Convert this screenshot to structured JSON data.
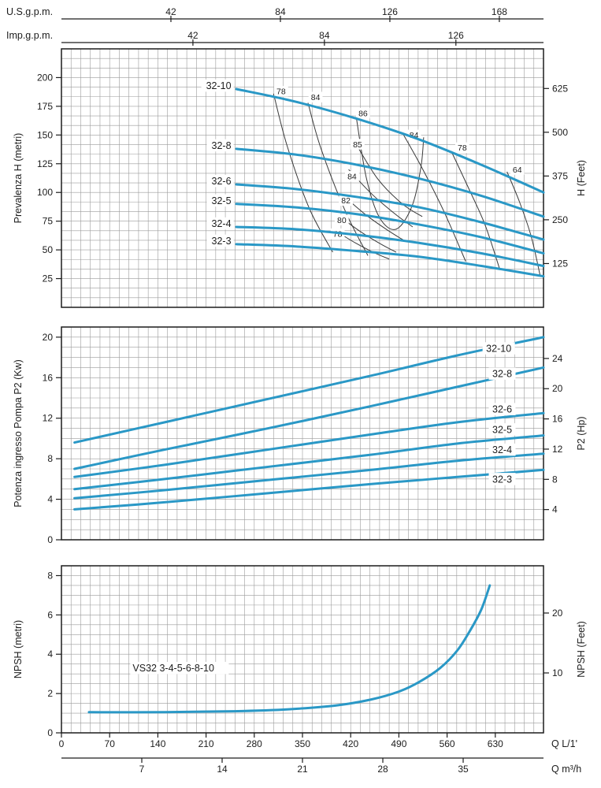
{
  "figure": {
    "background": "#ffffff",
    "curve_color": "#2a98c6",
    "grid_color": "#9b9b9b",
    "axis_color": "#1c1c1c",
    "contour_color": "#3a3a3a"
  },
  "top_scales": [
    {
      "label": "U.S.g.p.m.",
      "ticks": [
        42,
        84,
        126,
        168
      ],
      "l_per_unit": 3.785
    },
    {
      "label": "Imp.g.p.m.",
      "ticks": [
        42,
        84,
        126
      ],
      "l_per_unit": 4.546
    }
  ],
  "bottom_scales": {
    "lpm": {
      "label": "Q L/1'",
      "ticks": [
        0,
        70,
        140,
        210,
        280,
        350,
        420,
        490,
        560,
        630
      ]
    },
    "m3h": {
      "label": "Q m³/h",
      "ticks": [
        7,
        14,
        21,
        28,
        35
      ],
      "l_per_unit": 16.667
    }
  },
  "chart_data": [
    {
      "type": "line",
      "name": "head",
      "x_range": [
        0,
        700
      ],
      "y_range": [
        0,
        225
      ],
      "x_minor_step": 14,
      "y_minor_step": 8.3333,
      "y_axis_left": {
        "label": "Prevalenza H (metri)",
        "ticks": [
          25,
          50,
          75,
          100,
          125,
          150,
          175,
          200
        ]
      },
      "y_axis_right": {
        "label": "H (Feet)",
        "ticks": [
          125,
          250,
          375,
          500,
          625
        ],
        "left_units_per_unit": 0.3048
      },
      "series": [
        {
          "name": "32-10",
          "label_at": [
            250,
            193
          ],
          "label_anchor": "end",
          "points": [
            [
              254,
              190
            ],
            [
              340,
              179
            ],
            [
              430,
              164
            ],
            [
              520,
              146
            ],
            [
              610,
              124
            ],
            [
              700,
              100
            ]
          ]
        },
        {
          "name": "32-8",
          "label_at": [
            250,
            141
          ],
          "label_anchor": "end",
          "points": [
            [
              254,
              138
            ],
            [
              340,
              133
            ],
            [
              430,
              124
            ],
            [
              520,
              112
            ],
            [
              610,
              97
            ],
            [
              700,
              79
            ]
          ]
        },
        {
          "name": "32-6",
          "label_at": [
            250,
            110
          ],
          "label_anchor": "end",
          "points": [
            [
              254,
              107
            ],
            [
              340,
              103
            ],
            [
              430,
              96
            ],
            [
              520,
              87
            ],
            [
              610,
              74
            ],
            [
              700,
              59
            ]
          ]
        },
        {
          "name": "32-5",
          "label_at": [
            250,
            93
          ],
          "label_anchor": "end",
          "points": [
            [
              254,
              90
            ],
            [
              340,
              87
            ],
            [
              430,
              81
            ],
            [
              520,
              72
            ],
            [
              610,
              61
            ],
            [
              700,
              47
            ]
          ]
        },
        {
          "name": "32-4",
          "label_at": [
            250,
            73
          ],
          "label_anchor": "end",
          "points": [
            [
              254,
              70
            ],
            [
              340,
              68
            ],
            [
              430,
              63
            ],
            [
              520,
              56
            ],
            [
              610,
              47
            ],
            [
              700,
              36
            ]
          ]
        },
        {
          "name": "32-3",
          "label_at": [
            250,
            58
          ],
          "label_anchor": "end",
          "points": [
            [
              254,
              55
            ],
            [
              340,
              53
            ],
            [
              430,
              49
            ],
            [
              520,
              44
            ],
            [
              610,
              36
            ],
            [
              700,
              27
            ]
          ]
        }
      ],
      "contours": [
        {
          "label": "78",
          "label_at": [
            319,
            188
          ],
          "points": [
            [
              308,
              186
            ],
            [
              328,
              140
            ],
            [
              360,
              86
            ],
            [
              394,
              48
            ]
          ]
        },
        {
          "label": "84",
          "label_at": [
            369,
            183
          ],
          "points": [
            [
              358,
              178
            ],
            [
              377,
              138
            ],
            [
              412,
              84
            ],
            [
              445,
              45
            ]
          ]
        },
        {
          "label": "86",
          "label_at": [
            438,
            169
          ],
          "points": [
            [
              428,
              166
            ],
            [
              443,
              112
            ],
            [
              462,
              78
            ],
            [
              486,
              68
            ],
            [
              509,
              88
            ],
            [
              522,
              122
            ],
            [
              526,
              148
            ]
          ]
        },
        {
          "label": "84",
          "label_at": [
            512,
            150
          ],
          "points": [
            [
              495,
              152
            ],
            [
              523,
              122
            ],
            [
              555,
              84
            ],
            [
              587,
              40
            ]
          ]
        },
        {
          "label": "78",
          "label_at": [
            582,
            139
          ],
          "points": [
            [
              566,
              136
            ],
            [
              591,
              104
            ],
            [
              615,
              72
            ],
            [
              636,
              34
            ]
          ]
        },
        {
          "label": "64",
          "label_at": [
            662,
            120
          ],
          "points": [
            [
              647,
              118
            ],
            [
              665,
              92
            ],
            [
              682,
              62
            ],
            [
              695,
              28
            ]
          ]
        },
        {
          "label": "85",
          "label_at": [
            430,
            142
          ],
          "points": [
            [
              424,
              146
            ],
            [
              459,
              112
            ],
            [
              495,
              90
            ],
            [
              524,
              79
            ]
          ]
        },
        {
          "label": "84",
          "label_at": [
            422,
            114
          ],
          "points": [
            [
              417,
              120
            ],
            [
              450,
              99
            ],
            [
              485,
              81
            ],
            [
              510,
              70
            ]
          ]
        },
        {
          "label": "82",
          "label_at": [
            413,
            93
          ],
          "points": [
            [
              408,
              98
            ],
            [
              441,
              81
            ],
            [
              474,
              67
            ],
            [
              498,
              58
            ]
          ]
        },
        {
          "label": "80",
          "label_at": [
            407,
            76
          ],
          "points": [
            [
              402,
              80
            ],
            [
              434,
              66
            ],
            [
              464,
              55
            ],
            [
              486,
              48
            ]
          ]
        },
        {
          "label": "78",
          "label_at": [
            401,
            64
          ],
          "points": [
            [
              397,
              67
            ],
            [
              427,
              56
            ],
            [
              456,
              47
            ],
            [
              476,
              42
            ]
          ]
        }
      ]
    },
    {
      "type": "line",
      "name": "power",
      "x_range": [
        0,
        700
      ],
      "y_range": [
        0,
        21
      ],
      "x_minor_step": 14,
      "y_minor_step": 1,
      "y_axis_left": {
        "label": "Potenza ingresso Pompa P2 (Kw)",
        "ticks": [
          0,
          4,
          8,
          12,
          16,
          20
        ]
      },
      "y_axis_right": {
        "label": "P2 (Hp)",
        "ticks": [
          4,
          8,
          12,
          16,
          20,
          24
        ],
        "left_units_per_unit": 0.7457
      },
      "series": [
        {
          "name": "32-10",
          "label_at": [
            635,
            18.9
          ],
          "points": [
            [
              19,
              9.6
            ],
            [
              150,
              11.6
            ],
            [
              300,
              13.9
            ],
            [
              450,
              16.2
            ],
            [
              575,
              18.2
            ],
            [
              700,
              20.0
            ]
          ]
        },
        {
          "name": "32-8",
          "label_at": [
            640,
            16.4
          ],
          "points": [
            [
              19,
              7.0
            ],
            [
              150,
              8.9
            ],
            [
              300,
              11.0
            ],
            [
              450,
              13.2
            ],
            [
              575,
              15.1
            ],
            [
              700,
              17.0
            ]
          ]
        },
        {
          "name": "32-6",
          "label_at": [
            640,
            12.9
          ],
          "points": [
            [
              19,
              6.2
            ],
            [
              150,
              7.4
            ],
            [
              300,
              8.9
            ],
            [
              450,
              10.4
            ],
            [
              575,
              11.6
            ],
            [
              700,
              12.5
            ]
          ]
        },
        {
          "name": "32-5",
          "label_at": [
            640,
            10.9
          ],
          "points": [
            [
              19,
              5.0
            ],
            [
              150,
              6.0
            ],
            [
              300,
              7.2
            ],
            [
              450,
              8.4
            ],
            [
              575,
              9.5
            ],
            [
              700,
              10.3
            ]
          ]
        },
        {
          "name": "32-4",
          "label_at": [
            640,
            8.9
          ],
          "points": [
            [
              19,
              4.1
            ],
            [
              150,
              4.9
            ],
            [
              300,
              5.9
            ],
            [
              450,
              6.9
            ],
            [
              575,
              7.8
            ],
            [
              700,
              8.5
            ]
          ]
        },
        {
          "name": "32-3",
          "label_at": [
            640,
            6.0
          ],
          "points": [
            [
              19,
              3.0
            ],
            [
              150,
              3.7
            ],
            [
              300,
              4.6
            ],
            [
              450,
              5.5
            ],
            [
              575,
              6.2
            ],
            [
              700,
              6.9
            ]
          ]
        }
      ]
    },
    {
      "type": "line",
      "name": "npsh",
      "x_range": [
        0,
        700
      ],
      "y_range": [
        0,
        8.5
      ],
      "x_minor_step": 14,
      "y_minor_step": 0.5,
      "y_axis_left": {
        "label": "NPSH (metri)",
        "ticks": [
          0,
          2,
          4,
          6,
          8
        ]
      },
      "y_axis_right": {
        "label": "NPSH (Feet)",
        "ticks": [
          10,
          20
        ],
        "left_units_per_unit": 0.3048
      },
      "series": [
        {
          "name": "VS32 3-4-5-6-8-10",
          "label_at": [
            100,
            3.3
          ],
          "label_anchor": "start",
          "points": [
            [
              40,
              1.05
            ],
            [
              150,
              1.05
            ],
            [
              250,
              1.1
            ],
            [
              330,
              1.2
            ],
            [
              400,
              1.4
            ],
            [
              450,
              1.7
            ],
            [
              490,
              2.1
            ],
            [
              520,
              2.6
            ],
            [
              550,
              3.3
            ],
            [
              575,
              4.2
            ],
            [
              595,
              5.3
            ],
            [
              610,
              6.3
            ],
            [
              622,
              7.5
            ]
          ]
        }
      ]
    }
  ]
}
